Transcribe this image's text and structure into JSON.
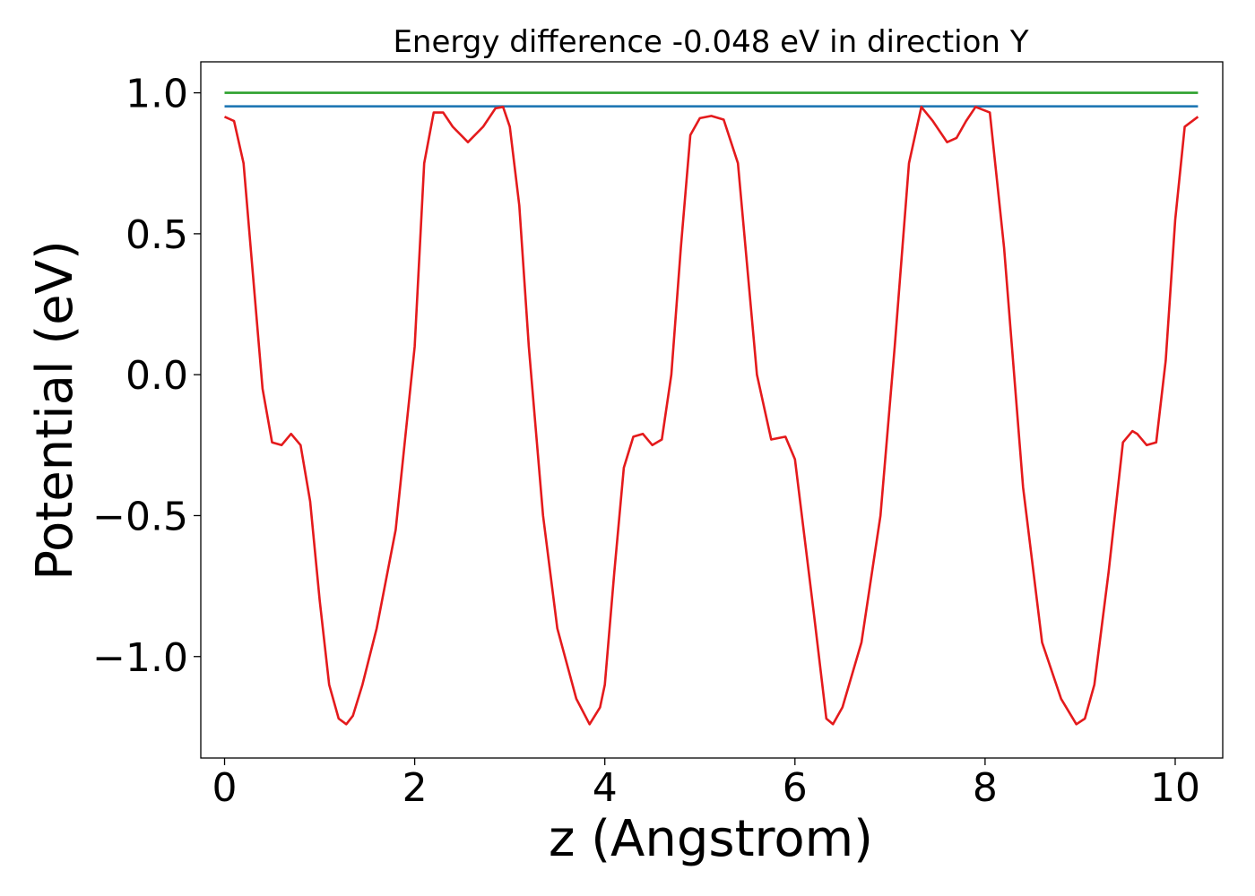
{
  "chart_data": {
    "type": "line",
    "title": "Energy difference -0.048 eV in direction Y",
    "xlabel": "z (Angstrom)",
    "ylabel": "Potential (eV)",
    "xlim": [
      -0.25,
      10.5
    ],
    "ylim": [
      -1.36,
      1.11
    ],
    "xticks": [
      0,
      2,
      4,
      6,
      8,
      10
    ],
    "xtick_labels": [
      "0",
      "2",
      "4",
      "6",
      "8",
      "10"
    ],
    "yticks": [
      -1.0,
      -0.5,
      0.0,
      0.5,
      1.0
    ],
    "ytick_labels": [
      "−1.0",
      "−0.5",
      "0.0",
      "0.5",
      "1.0"
    ],
    "grid": false,
    "legend": null,
    "series": [
      {
        "color": "#2ca02c",
        "x": [
          0,
          10.24
        ],
        "y": [
          1.0,
          1.0
        ]
      },
      {
        "color": "#1f77b4",
        "x": [
          0,
          10.24
        ],
        "y": [
          0.952,
          0.952
        ]
      },
      {
        "color": "#e41a1c",
        "x": [
          0.0,
          0.1,
          0.2,
          0.3,
          0.4,
          0.5,
          0.6,
          0.7,
          0.8,
          0.9,
          1.0,
          1.1,
          1.2,
          1.28,
          1.35,
          1.45,
          1.6,
          1.8,
          2.0,
          2.1,
          2.2,
          2.3,
          2.4,
          2.56,
          2.72,
          2.85,
          2.93,
          3.0,
          3.1,
          3.2,
          3.35,
          3.5,
          3.7,
          3.84,
          3.95,
          4.0,
          4.1,
          4.2,
          4.3,
          4.4,
          4.5,
          4.6,
          4.7,
          4.8,
          4.9,
          5.0,
          5.12,
          5.25,
          5.4,
          5.6,
          5.75,
          5.9,
          6.0,
          6.2,
          6.33,
          6.4,
          6.5,
          6.7,
          6.9,
          7.05,
          7.2,
          7.33,
          7.45,
          7.6,
          7.7,
          7.8,
          7.9,
          8.05,
          8.2,
          8.4,
          8.6,
          8.8,
          8.96,
          9.05,
          9.15,
          9.3,
          9.45,
          9.55,
          9.6,
          9.7,
          9.8,
          9.9,
          10.0,
          10.1,
          10.24
        ],
        "y": [
          0.915,
          0.9,
          0.75,
          0.35,
          -0.05,
          -0.24,
          -0.25,
          -0.21,
          -0.25,
          -0.45,
          -0.8,
          -1.1,
          -1.22,
          -1.24,
          -1.21,
          -1.1,
          -0.9,
          -0.55,
          0.1,
          0.75,
          0.93,
          0.93,
          0.88,
          0.825,
          0.88,
          0.945,
          0.95,
          0.88,
          0.6,
          0.1,
          -0.5,
          -0.9,
          -1.15,
          -1.24,
          -1.18,
          -1.1,
          -0.7,
          -0.33,
          -0.22,
          -0.21,
          -0.25,
          -0.23,
          0.0,
          0.45,
          0.85,
          0.91,
          0.918,
          0.905,
          0.75,
          0.0,
          -0.23,
          -0.22,
          -0.3,
          -0.85,
          -1.22,
          -1.24,
          -1.18,
          -0.95,
          -0.5,
          0.1,
          0.75,
          0.95,
          0.9,
          0.825,
          0.84,
          0.9,
          0.95,
          0.93,
          0.45,
          -0.4,
          -0.95,
          -1.15,
          -1.24,
          -1.22,
          -1.1,
          -0.7,
          -0.24,
          -0.2,
          -0.21,
          -0.25,
          -0.24,
          0.05,
          0.55,
          0.88,
          0.915
        ]
      }
    ]
  }
}
